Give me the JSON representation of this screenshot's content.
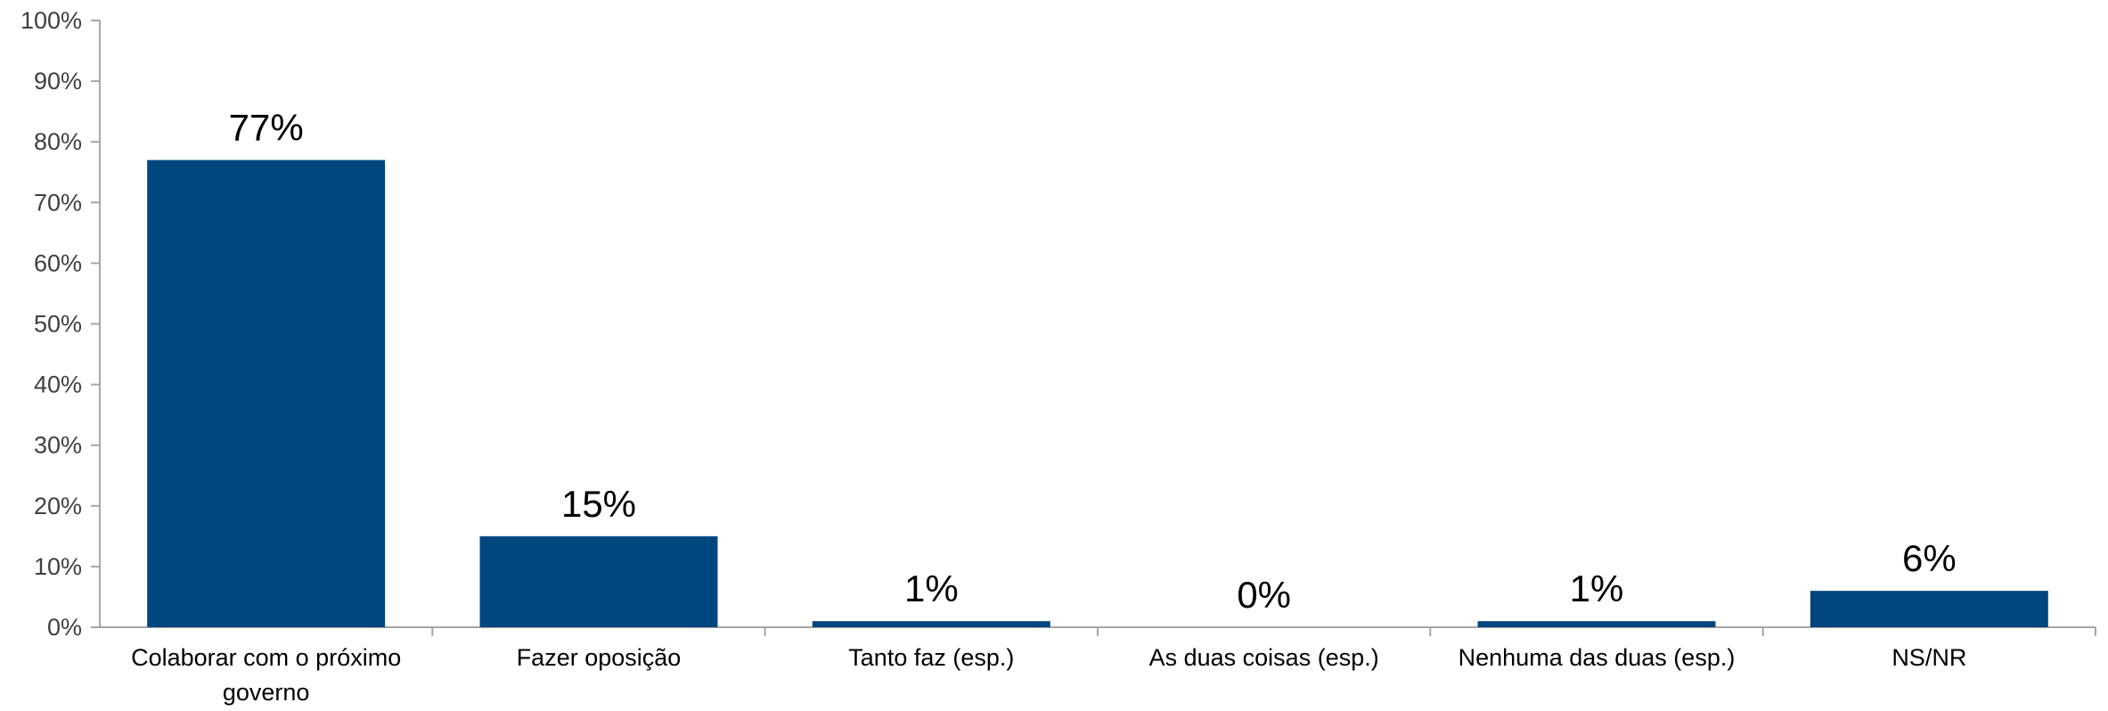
{
  "chart_data": {
    "type": "bar",
    "categories": [
      [
        "Colaborar com o próximo",
        "governo"
      ],
      [
        "Fazer oposição"
      ],
      [
        "Tanto faz (esp.)"
      ],
      [
        "As duas coisas (esp.)"
      ],
      [
        "Nenhuma das duas (esp.)"
      ],
      [
        "NS/NR"
      ]
    ],
    "values": [
      77,
      15,
      1,
      0,
      1,
      6
    ],
    "value_labels": [
      "77%",
      "15%",
      "1%",
      "0%",
      "1%",
      "6%"
    ],
    "ylim": [
      0,
      100
    ],
    "yticks": [
      0,
      10,
      20,
      30,
      40,
      50,
      60,
      70,
      80,
      90,
      100
    ],
    "ytick_labels": [
      "0%",
      "10%",
      "20%",
      "30%",
      "40%",
      "50%",
      "60%",
      "70%",
      "80%",
      "90%",
      "100%"
    ],
    "title": "",
    "xlabel": "",
    "ylabel": "",
    "grid": false,
    "legend": false,
    "bar_color": "#00467F",
    "axis_color": "#A6A6A6"
  }
}
